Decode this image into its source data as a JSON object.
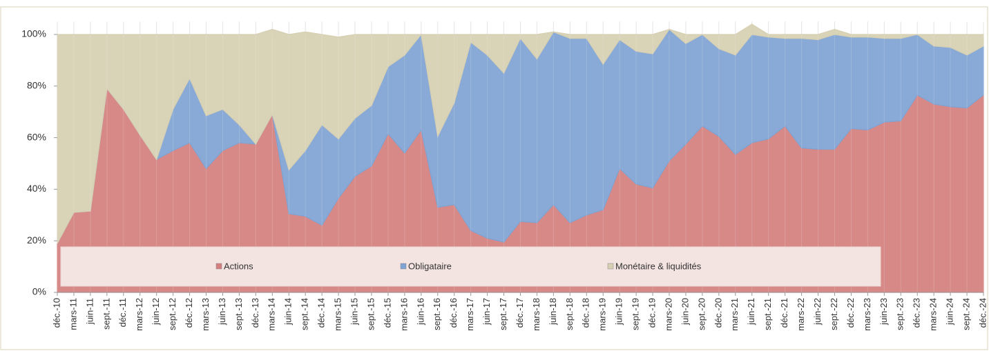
{
  "chart_data": {
    "type": "stacked-area",
    "categories": [
      "déc.-10",
      "mars-11",
      "juin-11",
      "sept.-11",
      "déc.-11",
      "mars-12",
      "juin-12",
      "sept.-12",
      "déc.-12",
      "mars-13",
      "juin-13",
      "sept.-13",
      "déc.-13",
      "mars-14",
      "juin-14",
      "sept.-14",
      "déc.-14",
      "mars-15",
      "juin-15",
      "sept.-15",
      "déc.-15",
      "mars-16",
      "juin-16",
      "sept.-16",
      "déc.-16",
      "mars-17",
      "juin-17",
      "sept.-17",
      "déc.-17",
      "mars-18",
      "juin-18",
      "sept.-18",
      "déc.-18",
      "mars-19",
      "juin-19",
      "sept.-19",
      "déc.-19",
      "mars-20",
      "juin-20",
      "sept.-20",
      "déc.-20",
      "mars-21",
      "juin-21",
      "sept.-21",
      "déc.-21",
      "mars-22",
      "juin-22",
      "sept.-22",
      "déc.-22",
      "mars-23",
      "juin-23",
      "sept.-23",
      "déc.-23",
      "mars-24",
      "juin-24",
      "sept.-24",
      "déc.-24"
    ],
    "series": [
      {
        "name": "Actions",
        "color": "#d47f7e",
        "values": [
          19,
          31,
          31.5,
          79,
          71,
          61,
          51.5,
          55,
          58,
          48,
          55,
          58,
          57.5,
          69,
          30.5,
          29.5,
          26,
          36.5,
          45,
          49,
          61.5,
          54,
          63,
          33,
          34,
          24,
          21,
          19.5,
          27.5,
          27,
          34,
          27,
          30,
          32,
          48,
          42,
          40.5,
          51,
          57.5,
          64.5,
          60.5,
          53.5,
          58,
          59.5,
          64.5,
          56,
          55.5,
          55.5,
          63.5,
          63,
          66,
          66.5,
          76.5,
          73,
          72,
          71.5,
          76.5
        ]
      },
      {
        "name": "Obligataire",
        "color": "#7fa3d3",
        "values": [
          0,
          0,
          0,
          0,
          0,
          0,
          0,
          16,
          25,
          20.5,
          16,
          7,
          0,
          0,
          17,
          25.5,
          39,
          23,
          22.5,
          23.5,
          26,
          38,
          37,
          27.5,
          39.5,
          73,
          71,
          65.5,
          71,
          63.5,
          67,
          71.5,
          68.5,
          56.5,
          50,
          51.5,
          52,
          51,
          39,
          35.5,
          34,
          38.5,
          42,
          39.5,
          34,
          42.5,
          42.5,
          44.5,
          35.5,
          36,
          32.5,
          32,
          23.5,
          22.5,
          23,
          20.5,
          19
        ]
      },
      {
        "name": "Monétaire & liquidités",
        "color": "#d6cfb2",
        "values": [
          81,
          69,
          68.5,
          21,
          29,
          39,
          48.5,
          29,
          17,
          31.5,
          29,
          35,
          42.5,
          33,
          52.5,
          46,
          35,
          39.5,
          32.5,
          27.5,
          12.5,
          8,
          0,
          39.5,
          26.5,
          3,
          8,
          15,
          1.5,
          9.5,
          0,
          1.5,
          1.5,
          11.5,
          2,
          6.5,
          7.5,
          0,
          3.5,
          0,
          5.5,
          8,
          4,
          1,
          1.5,
          1.5,
          2,
          2,
          1,
          1,
          1.5,
          1.5,
          0,
          4.5,
          5,
          8,
          4.5
        ]
      }
    ],
    "ylim": [
      0,
      105
    ],
    "yticks": [
      {
        "value": 0,
        "label": "0%"
      },
      {
        "value": 20,
        "label": "20%"
      },
      {
        "value": 40,
        "label": "40%"
      },
      {
        "value": 60,
        "label": "60%"
      },
      {
        "value": 80,
        "label": "80%"
      },
      {
        "value": 100,
        "label": "100%"
      }
    ],
    "grid": true,
    "legend": "bottom"
  }
}
